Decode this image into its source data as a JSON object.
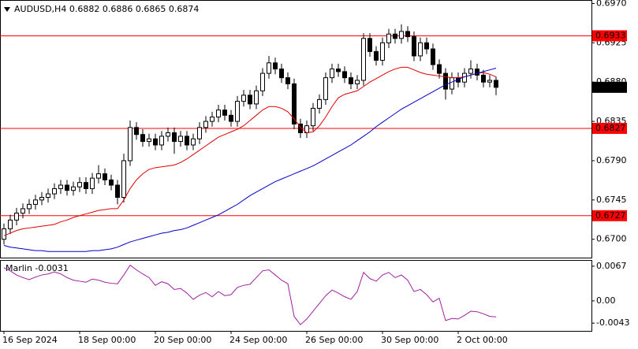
{
  "chart_data": {
    "type": "candlestick",
    "symbol": "AUDUSD,H4",
    "ohlc": [
      0.6882,
      0.6886,
      0.6865,
      0.6874
    ],
    "x": [
      "16 Sep 2024",
      null,
      null,
      null,
      null,
      null,
      null,
      null,
      null,
      null,
      null,
      null,
      "18 Sep 00:00",
      null,
      null,
      null,
      null,
      null,
      null,
      null,
      null,
      null,
      null,
      null,
      "20 Sep 00:00",
      null,
      null,
      null,
      null,
      null,
      null,
      null,
      null,
      null,
      null,
      null,
      "24 Sep 00:00",
      null,
      null,
      null,
      null,
      null,
      null,
      null,
      null,
      null,
      null,
      null,
      "26 Sep 00:00",
      null,
      null,
      null,
      null,
      null,
      null,
      null,
      null,
      null,
      null,
      null,
      "30 Sep 00:00",
      null,
      null,
      null,
      null,
      null,
      null,
      null,
      null,
      null,
      null,
      null,
      "2 Oct 00:00",
      null,
      null,
      null,
      null,
      null,
      null
    ],
    "open": [
      0.67,
      0.6712,
      0.6722,
      0.673,
      0.6735,
      0.674,
      0.6745,
      0.6748,
      0.6752,
      0.6758,
      0.6762,
      0.6756,
      0.676,
      0.6765,
      0.6758,
      0.677,
      0.6775,
      0.6768,
      0.6762,
      0.6748,
      0.679,
      0.6828,
      0.682,
      0.6812,
      0.6815,
      0.6808,
      0.6818,
      0.6822,
      0.6812,
      0.6818,
      0.6808,
      0.6815,
      0.6828,
      0.6835,
      0.684,
      0.6848,
      0.6842,
      0.6835,
      0.6858,
      0.6865,
      0.6855,
      0.687,
      0.689,
      0.6902,
      0.6895,
      0.6885,
      0.6878,
      0.6832,
      0.6822,
      0.683,
      0.685,
      0.686,
      0.6885,
      0.6895,
      0.6892,
      0.6885,
      0.6878,
      0.6882,
      0.693,
      0.6915,
      0.6905,
      0.6925,
      0.6935,
      0.693,
      0.6938,
      0.6932,
      0.691,
      0.6925,
      0.6918,
      0.69,
      0.689,
      0.6872,
      0.6885,
      0.688,
      0.689,
      0.6895,
      0.6888,
      0.688,
      0.6882
    ],
    "high": [
      0.6718,
      0.6728,
      0.6736,
      0.6741,
      0.6746,
      0.6751,
      0.6754,
      0.6758,
      0.6764,
      0.6768,
      0.6768,
      0.6766,
      0.6771,
      0.6771,
      0.6776,
      0.6785,
      0.6781,
      0.6774,
      0.6768,
      0.6798,
      0.6836,
      0.6834,
      0.6826,
      0.6821,
      0.6821,
      0.6824,
      0.6828,
      0.6828,
      0.6824,
      0.6824,
      0.6821,
      0.6834,
      0.6841,
      0.6846,
      0.6854,
      0.6854,
      0.6848,
      0.6864,
      0.6871,
      0.6871,
      0.6876,
      0.6896,
      0.691,
      0.6908,
      0.6901,
      0.6891,
      0.6884,
      0.6838,
      0.6836,
      0.6856,
      0.6866,
      0.6891,
      0.6901,
      0.6901,
      0.6898,
      0.6891,
      0.6888,
      0.6936,
      0.6936,
      0.6921,
      0.6931,
      0.6941,
      0.6941,
      0.6946,
      0.6944,
      0.6938,
      0.6931,
      0.6931,
      0.6924,
      0.6906,
      0.6896,
      0.6891,
      0.6891,
      0.6896,
      0.6905,
      0.6901,
      0.6894,
      0.6888,
      0.6886
    ],
    "low": [
      0.6694,
      0.6706,
      0.6716,
      0.6724,
      0.6729,
      0.6734,
      0.6739,
      0.6742,
      0.6746,
      0.6752,
      0.675,
      0.675,
      0.6754,
      0.6752,
      0.6752,
      0.6764,
      0.6762,
      0.6756,
      0.674,
      0.6742,
      0.6784,
      0.6814,
      0.6806,
      0.6806,
      0.6802,
      0.6802,
      0.6812,
      0.6798,
      0.6806,
      0.6802,
      0.6802,
      0.6809,
      0.6822,
      0.6829,
      0.6834,
      0.6836,
      0.6829,
      0.6829,
      0.6852,
      0.6849,
      0.6849,
      0.6864,
      0.6884,
      0.6889,
      0.6879,
      0.6872,
      0.6826,
      0.6816,
      0.6816,
      0.6824,
      0.6844,
      0.6854,
      0.6879,
      0.6886,
      0.6879,
      0.6872,
      0.6872,
      0.6876,
      0.6909,
      0.6899,
      0.6899,
      0.6919,
      0.6924,
      0.6924,
      0.6926,
      0.6904,
      0.6904,
      0.6912,
      0.6894,
      0.6884,
      0.686,
      0.6866,
      0.6874,
      0.6874,
      0.6884,
      0.6882,
      0.6874,
      0.6874,
      0.6865
    ],
    "close": [
      0.6712,
      0.6722,
      0.673,
      0.6735,
      0.674,
      0.6745,
      0.6748,
      0.6752,
      0.6758,
      0.6762,
      0.6756,
      0.676,
      0.6765,
      0.6758,
      0.677,
      0.6775,
      0.6768,
      0.6762,
      0.6748,
      0.679,
      0.6828,
      0.682,
      0.6812,
      0.6815,
      0.6808,
      0.6818,
      0.6822,
      0.6812,
      0.6818,
      0.6808,
      0.6815,
      0.6828,
      0.6835,
      0.684,
      0.6848,
      0.6842,
      0.6835,
      0.6858,
      0.6865,
      0.6855,
      0.687,
      0.689,
      0.6902,
      0.6895,
      0.6885,
      0.6878,
      0.6832,
      0.6822,
      0.683,
      0.685,
      0.686,
      0.6885,
      0.6895,
      0.6892,
      0.6885,
      0.6878,
      0.6882,
      0.693,
      0.6915,
      0.6905,
      0.6925,
      0.6935,
      0.693,
      0.6938,
      0.6932,
      0.691,
      0.6925,
      0.6918,
      0.69,
      0.689,
      0.6872,
      0.6885,
      0.688,
      0.689,
      0.6895,
      0.6888,
      0.688,
      0.6882,
      0.6874
    ],
    "lines": [
      {
        "color": "#e00000",
        "values": [
          0.6704,
          0.6707,
          0.671,
          0.6712,
          0.6713,
          0.6714,
          0.6715,
          0.6716,
          0.6717,
          0.672,
          0.6722,
          0.6725,
          0.6727,
          0.6729,
          0.6731,
          0.6733,
          0.6734,
          0.6735,
          0.6735,
          0.6745,
          0.6758,
          0.6768,
          0.6775,
          0.678,
          0.6782,
          0.6783,
          0.6784,
          0.6785,
          0.6788,
          0.6792,
          0.6797,
          0.6802,
          0.6807,
          0.6812,
          0.6817,
          0.682,
          0.6823,
          0.6826,
          0.683,
          0.6836,
          0.6842,
          0.6848,
          0.6852,
          0.6852,
          0.685,
          0.6846,
          0.6838,
          0.6828,
          0.6822,
          0.6823,
          0.683,
          0.684,
          0.6852,
          0.6862,
          0.6866,
          0.6868,
          0.687,
          0.6875,
          0.688,
          0.6884,
          0.6888,
          0.6892,
          0.6895,
          0.6897,
          0.6897,
          0.6894,
          0.6891,
          0.6889,
          0.6888,
          0.6887,
          0.6886,
          0.6885,
          0.6885,
          0.6886,
          0.6888,
          0.689,
          0.6891,
          0.6889,
          0.6886
        ]
      },
      {
        "color": "#0000cc",
        "values": [
          0.6693,
          0.6691,
          0.669,
          0.6689,
          0.6688,
          0.6687,
          0.6687,
          0.6686,
          0.6686,
          0.6686,
          0.6686,
          0.6686,
          0.6686,
          0.6686,
          0.6687,
          0.6687,
          0.6688,
          0.6689,
          0.6691,
          0.6694,
          0.6697,
          0.6699,
          0.6701,
          0.6703,
          0.6705,
          0.6707,
          0.6708,
          0.671,
          0.6711,
          0.6713,
          0.6716,
          0.6719,
          0.6722,
          0.6725,
          0.6728,
          0.6732,
          0.6736,
          0.674,
          0.6745,
          0.675,
          0.6754,
          0.6758,
          0.6762,
          0.6766,
          0.6769,
          0.6772,
          0.6775,
          0.6778,
          0.6781,
          0.6784,
          0.6788,
          0.6792,
          0.6796,
          0.68,
          0.6804,
          0.6808,
          0.6813,
          0.6818,
          0.6823,
          0.6829,
          0.6834,
          0.6839,
          0.6844,
          0.6849,
          0.6853,
          0.6857,
          0.6861,
          0.6865,
          0.6869,
          0.6873,
          0.6877,
          0.688,
          0.6883,
          0.6886,
          0.6888,
          0.689,
          0.6892,
          0.6894,
          0.6896
        ]
      }
    ],
    "levels": [
      {
        "value": 0.6933,
        "color": "#ff0000"
      },
      {
        "value": 0.6827,
        "color": "#ff0000"
      },
      {
        "value": 0.6727,
        "color": "#ff0000"
      }
    ],
    "ylim": [
      0.6679,
      0.6974
    ],
    "yticks": [
      {
        "value": 0.697,
        "label": "0.6970"
      },
      0.6925,
      {
        "value": 0.688,
        "label": "0.6880"
      },
      0.6835,
      {
        "value": 0.679,
        "label": "0.6790"
      },
      0.6745,
      {
        "value": 0.67,
        "label": "0.6700"
      }
    ],
    "indicator": {
      "name": "Marlin",
      "current": -0.0031,
      "color": "#a020a0",
      "values": [
        0.0064,
        0.0058,
        0.005,
        0.0045,
        0.0041,
        0.0046,
        0.005,
        0.0052,
        0.0056,
        0.0052,
        0.0045,
        0.004,
        0.0038,
        0.0036,
        0.0042,
        0.004,
        0.0036,
        0.0034,
        0.0033,
        0.005,
        0.0069,
        0.006,
        0.0052,
        0.0045,
        0.003,
        0.0037,
        0.0033,
        0.0022,
        0.0024,
        0.0015,
        0.0003,
        0.0011,
        0.0016,
        0.0008,
        0.0018,
        0.001,
        0.0012,
        0.0026,
        0.003,
        0.0032,
        0.0045,
        0.0058,
        0.006,
        0.005,
        0.004,
        0.0033,
        -0.003,
        -0.0046,
        -0.0035,
        -0.002,
        -0.0005,
        0.001,
        0.0021,
        0.0015,
        0.0008,
        0.0003,
        0.0018,
        0.0055,
        0.0043,
        0.0038,
        0.005,
        0.0055,
        0.0045,
        0.005,
        0.004,
        0.0018,
        0.0022,
        0.0012,
        -0.0002,
        0.0005,
        -0.0038,
        -0.0034,
        -0.0035,
        -0.0028,
        -0.002,
        -0.0021,
        -0.0025,
        -0.003,
        -0.0031
      ],
      "ylim": [
        -0.0058,
        0.0079
      ],
      "yticks": [
        0.0067,
        {
          "value": 0,
          "label": "0.00"
        },
        -0.0043
      ]
    }
  }
}
